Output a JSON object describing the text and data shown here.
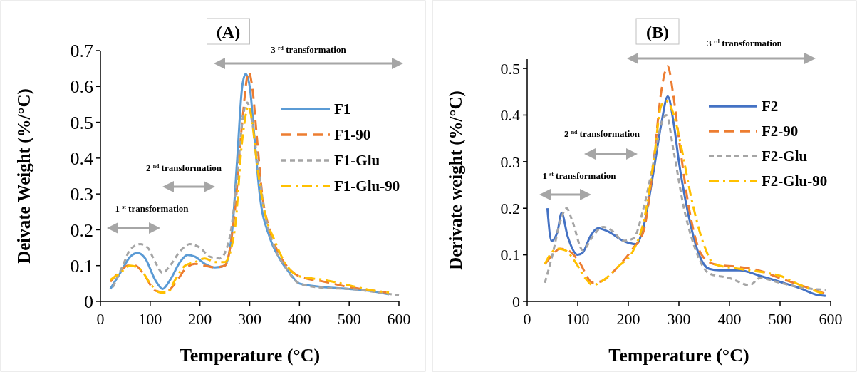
{
  "chart_data": [
    {
      "type": "line",
      "title": "(A)",
      "xlabel": "Temperature (°C)",
      "ylabel": "Deivate Weight (%/°C)",
      "xlim": [
        0,
        600
      ],
      "xticks": [
        0,
        100,
        200,
        300,
        400,
        500,
        600
      ],
      "ylim": [
        0,
        0.7
      ],
      "yticks": [
        0,
        0.1,
        0.2,
        0.3,
        0.4,
        0.5,
        0.6,
        0.7
      ],
      "legend": "right",
      "annotations": [
        "1 $^{st}$ transformation",
        "2 $^{nd}$ transformation",
        "3 $^{rd}$ transformation"
      ],
      "series": [
        {
          "name": "F1",
          "color": "#5b9bd5",
          "line_style": "solid",
          "x": [
            20,
            40,
            60,
            75,
            90,
            110,
            125,
            140,
            160,
            175,
            190,
            210,
            230,
            250,
            265,
            275,
            285,
            292,
            300,
            310,
            320,
            340,
            360,
            380,
            400,
            450,
            500,
            550,
            580
          ],
          "values": [
            0.035,
            0.08,
            0.125,
            0.135,
            0.12,
            0.06,
            0.035,
            0.06,
            0.11,
            0.13,
            0.125,
            0.105,
            0.095,
            0.1,
            0.2,
            0.4,
            0.6,
            0.635,
            0.6,
            0.45,
            0.3,
            0.18,
            0.12,
            0.08,
            0.05,
            0.04,
            0.035,
            0.028,
            0.02
          ]
        },
        {
          "name": "F1-90",
          "color": "#ed7d31",
          "line_style": "dashed",
          "x": [
            20,
            40,
            55,
            70,
            90,
            110,
            130,
            150,
            170,
            190,
            210,
            230,
            250,
            270,
            285,
            298,
            305,
            315,
            325,
            340,
            360,
            380,
            400,
            450,
            500,
            550,
            575
          ],
          "values": [
            0.055,
            0.085,
            0.1,
            0.1,
            0.07,
            0.03,
            0.025,
            0.05,
            0.09,
            0.105,
            0.1,
            0.095,
            0.1,
            0.25,
            0.5,
            0.64,
            0.6,
            0.45,
            0.3,
            0.2,
            0.13,
            0.09,
            0.07,
            0.055,
            0.04,
            0.03,
            0.025
          ]
        },
        {
          "name": "F1-Glu",
          "color": "#a5a5a5",
          "line_style": "dotted",
          "x": [
            25,
            45,
            60,
            80,
            95,
            110,
            125,
            140,
            160,
            180,
            200,
            220,
            240,
            260,
            275,
            287,
            295,
            305,
            315,
            330,
            350,
            370,
            400,
            450,
            500,
            550,
            600
          ],
          "values": [
            0.04,
            0.1,
            0.145,
            0.16,
            0.15,
            0.11,
            0.08,
            0.1,
            0.14,
            0.16,
            0.15,
            0.125,
            0.12,
            0.18,
            0.35,
            0.52,
            0.555,
            0.5,
            0.4,
            0.25,
            0.15,
            0.1,
            0.05,
            0.038,
            0.035,
            0.027,
            0.017
          ]
        },
        {
          "name": "F1-Glu-90",
          "color": "#ffc000",
          "line_style": "dashdot",
          "x": [
            20,
            40,
            60,
            80,
            100,
            120,
            135,
            150,
            170,
            190,
            210,
            230,
            250,
            270,
            285,
            298,
            305,
            315,
            330,
            350,
            370,
            400,
            450,
            500,
            550,
            580
          ],
          "values": [
            0.06,
            0.08,
            0.1,
            0.09,
            0.05,
            0.025,
            0.025,
            0.06,
            0.1,
            0.11,
            0.12,
            0.11,
            0.11,
            0.2,
            0.45,
            0.545,
            0.5,
            0.38,
            0.25,
            0.17,
            0.11,
            0.07,
            0.06,
            0.045,
            0.03,
            0.025
          ]
        }
      ]
    },
    {
      "type": "line",
      "title": "(B)",
      "xlabel": "Temperature (°C)",
      "ylabel": "Derivate weight (%/°C)",
      "xlim": [
        0,
        600
      ],
      "xticks": [
        0,
        100,
        200,
        300,
        400,
        500,
        600
      ],
      "ylim": [
        0,
        0.52
      ],
      "yticks": [
        0,
        0.1,
        0.2,
        0.3,
        0.4,
        0.5
      ],
      "legend": "right",
      "annotations": [
        "1 $^{st}$ transformation",
        "2 $^{nd}$ transformation",
        "3 $^{rd}$ transformation"
      ],
      "series": [
        {
          "name": "F2",
          "color": "#4472c4",
          "line_style": "solid",
          "x": [
            40,
            48,
            60,
            68,
            80,
            100,
            110,
            125,
            140,
            160,
            190,
            215,
            230,
            250,
            265,
            278,
            290,
            300,
            320,
            340,
            360,
            380,
            420,
            460,
            500,
            540,
            570,
            590
          ],
          "values": [
            0.2,
            0.13,
            0.15,
            0.19,
            0.14,
            0.1,
            0.105,
            0.14,
            0.157,
            0.15,
            0.13,
            0.123,
            0.16,
            0.28,
            0.38,
            0.44,
            0.38,
            0.3,
            0.18,
            0.1,
            0.07,
            0.067,
            0.067,
            0.055,
            0.042,
            0.028,
            0.015,
            0.012
          ]
        },
        {
          "name": "F2-90",
          "color": "#ed7d31",
          "line_style": "dashed",
          "x": [
            35,
            50,
            65,
            80,
            100,
            130,
            150,
            180,
            210,
            230,
            250,
            265,
            278,
            288,
            300,
            320,
            345,
            370,
            420,
            460,
            500,
            540,
            580,
            590
          ],
          "values": [
            0.08,
            0.1,
            0.113,
            0.11,
            0.09,
            0.04,
            0.045,
            0.075,
            0.115,
            0.15,
            0.3,
            0.45,
            0.505,
            0.45,
            0.35,
            0.2,
            0.1,
            0.08,
            0.074,
            0.066,
            0.05,
            0.035,
            0.02,
            0.016
          ]
        },
        {
          "name": "F2-Glu",
          "color": "#a5a5a5",
          "line_style": "dotted",
          "x": [
            35,
            50,
            65,
            78,
            90,
            110,
            130,
            150,
            170,
            190,
            210,
            230,
            250,
            265,
            275,
            290,
            310,
            330,
            360,
            400,
            440,
            460,
            500,
            540,
            590
          ],
          "values": [
            0.04,
            0.1,
            0.17,
            0.2,
            0.17,
            0.11,
            0.14,
            0.16,
            0.15,
            0.13,
            0.135,
            0.2,
            0.3,
            0.38,
            0.4,
            0.32,
            0.2,
            0.12,
            0.06,
            0.05,
            0.035,
            0.05,
            0.04,
            0.03,
            0.025
          ]
        },
        {
          "name": "F2-Glu-90",
          "color": "#ffc000",
          "line_style": "dashdot",
          "x": [
            35,
            45,
            60,
            75,
            95,
            115,
            130,
            150,
            180,
            210,
            230,
            250,
            265,
            275,
            290,
            305,
            325,
            350,
            370,
            420,
            470,
            500,
            540,
            590
          ],
          "values": [
            0.08,
            0.1,
            0.113,
            0.11,
            0.085,
            0.05,
            0.035,
            0.045,
            0.075,
            0.11,
            0.17,
            0.3,
            0.42,
            0.43,
            0.4,
            0.33,
            0.22,
            0.12,
            0.08,
            0.07,
            0.062,
            0.055,
            0.035,
            0.015
          ]
        }
      ]
    }
  ]
}
